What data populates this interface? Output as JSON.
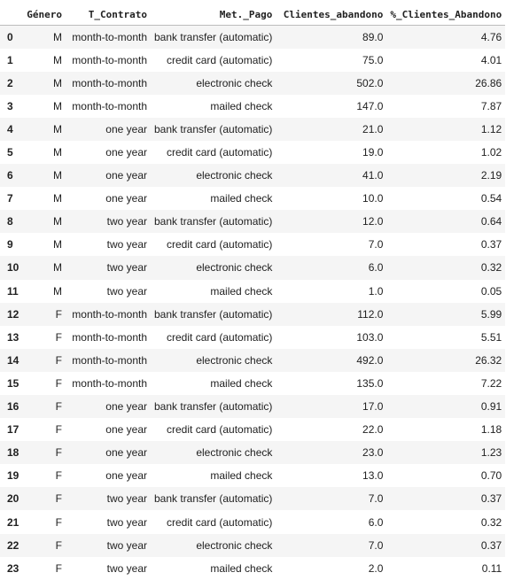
{
  "table": {
    "columns": [
      "Género",
      "T_Contrato",
      "Met._Pago",
      "Clientes_abandono",
      "%_Clientes_Abandono"
    ],
    "rows": [
      {
        "index": "0",
        "genero": "M",
        "contrato": "month-to-month",
        "pago": "bank transfer (automatic)",
        "clientes": "89.0",
        "pct": "4.76"
      },
      {
        "index": "1",
        "genero": "M",
        "contrato": "month-to-month",
        "pago": "credit card (automatic)",
        "clientes": "75.0",
        "pct": "4.01"
      },
      {
        "index": "2",
        "genero": "M",
        "contrato": "month-to-month",
        "pago": "electronic check",
        "clientes": "502.0",
        "pct": "26.86"
      },
      {
        "index": "3",
        "genero": "M",
        "contrato": "month-to-month",
        "pago": "mailed check",
        "clientes": "147.0",
        "pct": "7.87"
      },
      {
        "index": "4",
        "genero": "M",
        "contrato": "one year",
        "pago": "bank transfer (automatic)",
        "clientes": "21.0",
        "pct": "1.12"
      },
      {
        "index": "5",
        "genero": "M",
        "contrato": "one year",
        "pago": "credit card (automatic)",
        "clientes": "19.0",
        "pct": "1.02"
      },
      {
        "index": "6",
        "genero": "M",
        "contrato": "one year",
        "pago": "electronic check",
        "clientes": "41.0",
        "pct": "2.19"
      },
      {
        "index": "7",
        "genero": "M",
        "contrato": "one year",
        "pago": "mailed check",
        "clientes": "10.0",
        "pct": "0.54"
      },
      {
        "index": "8",
        "genero": "M",
        "contrato": "two year",
        "pago": "bank transfer (automatic)",
        "clientes": "12.0",
        "pct": "0.64"
      },
      {
        "index": "9",
        "genero": "M",
        "contrato": "two year",
        "pago": "credit card (automatic)",
        "clientes": "7.0",
        "pct": "0.37"
      },
      {
        "index": "10",
        "genero": "M",
        "contrato": "two year",
        "pago": "electronic check",
        "clientes": "6.0",
        "pct": "0.32"
      },
      {
        "index": "11",
        "genero": "M",
        "contrato": "two year",
        "pago": "mailed check",
        "clientes": "1.0",
        "pct": "0.05"
      },
      {
        "index": "12",
        "genero": "F",
        "contrato": "month-to-month",
        "pago": "bank transfer (automatic)",
        "clientes": "112.0",
        "pct": "5.99"
      },
      {
        "index": "13",
        "genero": "F",
        "contrato": "month-to-month",
        "pago": "credit card (automatic)",
        "clientes": "103.0",
        "pct": "5.51"
      },
      {
        "index": "14",
        "genero": "F",
        "contrato": "month-to-month",
        "pago": "electronic check",
        "clientes": "492.0",
        "pct": "26.32"
      },
      {
        "index": "15",
        "genero": "F",
        "contrato": "month-to-month",
        "pago": "mailed check",
        "clientes": "135.0",
        "pct": "7.22"
      },
      {
        "index": "16",
        "genero": "F",
        "contrato": "one year",
        "pago": "bank transfer (automatic)",
        "clientes": "17.0",
        "pct": "0.91"
      },
      {
        "index": "17",
        "genero": "F",
        "contrato": "one year",
        "pago": "credit card (automatic)",
        "clientes": "22.0",
        "pct": "1.18"
      },
      {
        "index": "18",
        "genero": "F",
        "contrato": "one year",
        "pago": "electronic check",
        "clientes": "23.0",
        "pct": "1.23"
      },
      {
        "index": "19",
        "genero": "F",
        "contrato": "one year",
        "pago": "mailed check",
        "clientes": "13.0",
        "pct": "0.70"
      },
      {
        "index": "20",
        "genero": "F",
        "contrato": "two year",
        "pago": "bank transfer (automatic)",
        "clientes": "7.0",
        "pct": "0.37"
      },
      {
        "index": "21",
        "genero": "F",
        "contrato": "two year",
        "pago": "credit card (automatic)",
        "clientes": "6.0",
        "pct": "0.32"
      },
      {
        "index": "22",
        "genero": "F",
        "contrato": "two year",
        "pago": "electronic check",
        "clientes": "7.0",
        "pct": "0.37"
      },
      {
        "index": "23",
        "genero": "F",
        "contrato": "two year",
        "pago": "mailed check",
        "clientes": "2.0",
        "pct": "0.11"
      }
    ]
  },
  "colors": {
    "stripe": "#f5f5f5",
    "text": "#212121",
    "header_rule": "#bdbdbd"
  }
}
